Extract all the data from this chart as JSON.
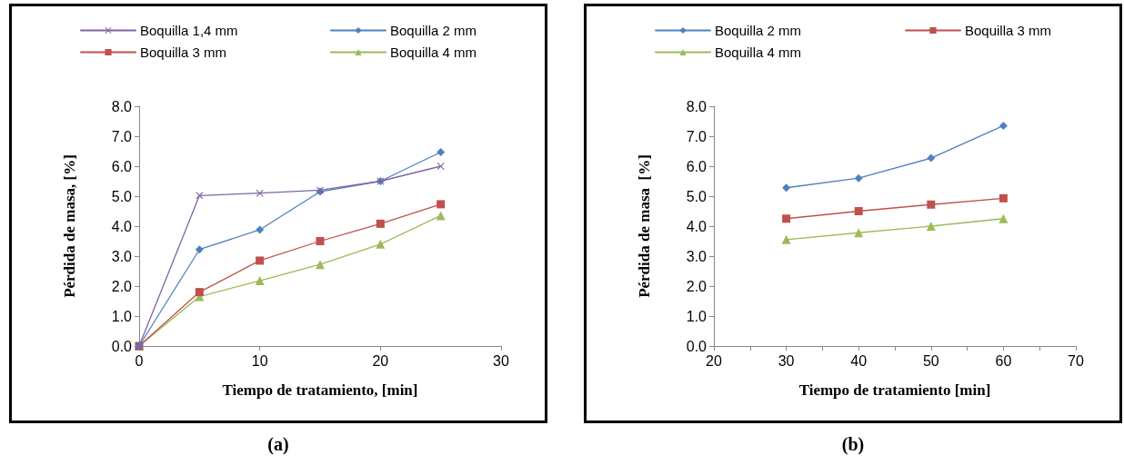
{
  "chart_data": [
    {
      "type": "line",
      "xlabel": "Tiempo de tratamiento, [min]",
      "ylabel": "Pérdida de masa, [%]",
      "annotations": [
        "(a)"
      ],
      "x": [
        0,
        5,
        10,
        15,
        20,
        25
      ],
      "xlim": [
        0,
        30
      ],
      "xticks": [
        0,
        10,
        20,
        30
      ],
      "ylim": [
        0,
        8
      ],
      "yticks": [
        {
          "value": 0,
          "label": "0.0"
        },
        {
          "value": 1,
          "label": "1.0"
        },
        {
          "value": 2,
          "label": "2.0"
        },
        {
          "value": 3,
          "label": "3.0"
        },
        {
          "value": 4,
          "label": "4.0"
        },
        {
          "value": 5,
          "label": "5.0"
        },
        {
          "value": 6,
          "label": "6.0"
        },
        {
          "value": 7,
          "label": "7.0"
        },
        {
          "value": 8,
          "label": "8.0"
        }
      ],
      "grid": false,
      "legend": "top",
      "line_style": "solid",
      "series": [
        {
          "name": "Boquilla 1,4 mm",
          "color": "#8064a2",
          "marker": "cross",
          "values": [
            0,
            5.02,
            5.1,
            5.2,
            5.5,
            6.0
          ]
        },
        {
          "name": "Boquilla 2 mm",
          "color": "#4f81bd",
          "marker": "diamond",
          "values": [
            0,
            3.22,
            3.88,
            5.15,
            5.5,
            6.47
          ]
        },
        {
          "name": "Boquilla 3 mm",
          "color": "#c0504d",
          "marker": "square",
          "values": [
            0,
            1.8,
            2.85,
            3.5,
            4.08,
            4.73
          ]
        },
        {
          "name": "Boquilla 4 mm",
          "color": "#9bbb59",
          "marker": "triangle",
          "values": [
            0,
            1.65,
            2.18,
            2.72,
            3.4,
            4.35
          ]
        }
      ]
    },
    {
      "type": "line",
      "xlabel": "Tiempo de tratamiento [min]",
      "ylabel": "Pérdida de masa  [%]",
      "annotations": [
        "(b)"
      ],
      "x": [
        30,
        40,
        50,
        60
      ],
      "xlim": [
        20,
        70
      ],
      "xticks": [
        20,
        {
          "value": 25,
          "label": null
        },
        30,
        {
          "value": 35,
          "label": null
        },
        40,
        {
          "value": 45,
          "label": null
        },
        50,
        {
          "value": 55,
          "label": null
        },
        60,
        {
          "value": 65,
          "label": null
        },
        70
      ],
      "ylim": [
        0,
        8
      ],
      "yticks": [
        {
          "value": 0,
          "label": "0.0"
        },
        {
          "value": 1,
          "label": "1.0"
        },
        {
          "value": 2,
          "label": "2.0"
        },
        {
          "value": 3,
          "label": "3.0"
        },
        {
          "value": 4,
          "label": "4.0"
        },
        {
          "value": 5,
          "label": "5.0"
        },
        {
          "value": 6,
          "label": "6.0"
        },
        {
          "value": 7,
          "label": "7.0"
        },
        {
          "value": 8,
          "label": "8.0"
        }
      ],
      "grid": false,
      "legend": "top",
      "line_style": "solid",
      "series": [
        {
          "name": "Boquilla 2 mm",
          "color": "#4f81bd",
          "marker": "diamond",
          "values": [
            5.28,
            5.6,
            6.27,
            7.35
          ]
        },
        {
          "name": "Boquilla 3 mm",
          "color": "#c0504d",
          "marker": "square",
          "values": [
            4.25,
            4.5,
            4.72,
            4.93
          ]
        },
        {
          "name": "Boquilla 4 mm",
          "color": "#9bbb59",
          "marker": "triangle",
          "values": [
            3.55,
            3.78,
            4.0,
            4.25
          ]
        }
      ]
    }
  ]
}
